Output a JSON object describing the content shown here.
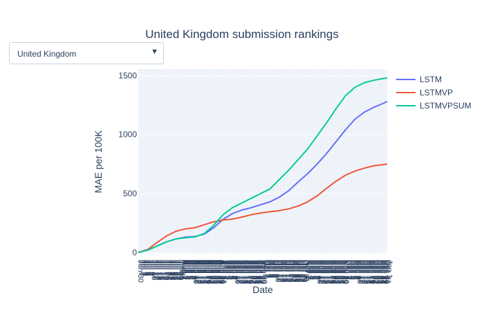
{
  "dropdown": {
    "selected": "United Kingdom"
  },
  "chart_data": {
    "type": "line",
    "title": "United Kingdom submission rankings",
    "xlabel": "Date",
    "ylabel": "MAE per 100K",
    "ylim": [
      -10,
      1555
    ],
    "xlim": [
      "2020-06-30",
      "2021-01-01"
    ],
    "yticks": [
      0,
      500,
      1000,
      1500
    ],
    "grid": true,
    "legend_position": "right",
    "x": [
      "2020-06-30",
      "2020-07-07",
      "2020-07-14",
      "2020-07-21",
      "2020-07-28",
      "2020-08-04",
      "2020-08-11",
      "2020-08-18",
      "2020-08-25",
      "2020-09-01",
      "2020-09-08",
      "2020-09-15",
      "2020-09-22",
      "2020-09-29",
      "2020-10-06",
      "2020-10-13",
      "2020-10-20",
      "2020-10-27",
      "2020-11-03",
      "2020-11-10",
      "2020-11-17",
      "2020-11-24",
      "2020-12-01",
      "2020-12-08",
      "2020-12-15",
      "2020-12-22",
      "2020-12-29",
      "2021-01-01"
    ],
    "series": [
      {
        "name": "LSTM",
        "color": "#636efa",
        "values": [
          0,
          20,
          55,
          90,
          115,
          130,
          135,
          155,
          210,
          280,
          330,
          360,
          380,
          405,
          430,
          470,
          525,
          600,
          670,
          750,
          840,
          940,
          1040,
          1130,
          1190,
          1230,
          1265,
          1280
        ]
      },
      {
        "name": "LSTMVP",
        "color": "#ef553b",
        "values": [
          0,
          25,
          85,
          140,
          180,
          200,
          210,
          235,
          260,
          275,
          283,
          300,
          320,
          335,
          345,
          355,
          370,
          395,
          430,
          480,
          545,
          605,
          655,
          690,
          715,
          735,
          745,
          750
        ]
      },
      {
        "name": "LSTMVPSUM",
        "color": "#00cc96",
        "values": [
          0,
          20,
          55,
          90,
          115,
          125,
          132,
          160,
          230,
          320,
          380,
          420,
          460,
          500,
          540,
          620,
          700,
          790,
          880,
          990,
          1100,
          1220,
          1330,
          1400,
          1440,
          1460,
          1475,
          1480
        ]
      }
    ]
  }
}
